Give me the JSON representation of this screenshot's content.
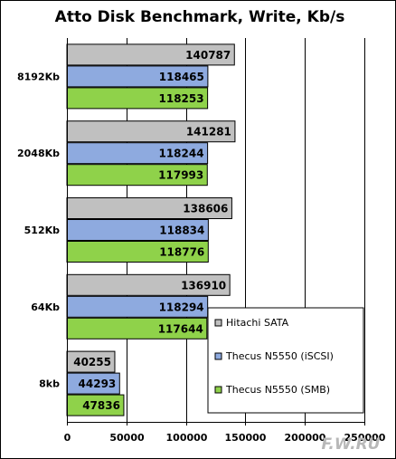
{
  "chart_data": {
    "type": "bar",
    "orientation": "horizontal",
    "title": "Atto Disk Benchmark, Write, Kb/s",
    "categories": [
      "8192Kb",
      "2048Kb",
      "512Kb",
      "64Kb",
      "8kb"
    ],
    "series": [
      {
        "name": "Hitachi SATA",
        "color": "#c0c0c0",
        "values": [
          140787,
          141281,
          138606,
          136910,
          40255
        ]
      },
      {
        "name": "Thecus N5550 (iSCSI)",
        "color": "#8eaadf",
        "values": [
          118465,
          118244,
          118834,
          118294,
          44293
        ]
      },
      {
        "name": "Thecus N5550 (SMB)",
        "color": "#8fd24a",
        "values": [
          118253,
          117993,
          118776,
          117644,
          47836
        ]
      }
    ],
    "xlim": [
      0,
      250000
    ],
    "xticks": [
      0,
      50000,
      100000,
      150000,
      200000,
      250000
    ],
    "grid": true,
    "legend_position": "bottom-right"
  },
  "watermark": "F.W.RU"
}
